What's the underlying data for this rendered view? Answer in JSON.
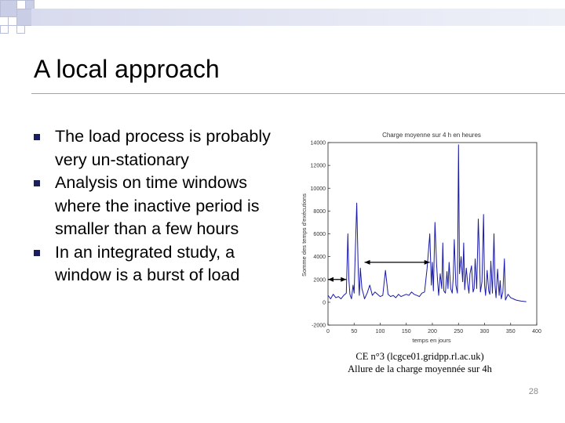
{
  "slide": {
    "title": "A local approach",
    "bullets": [
      "The load process is probably very un-stationary",
      "Analysis on time windows where the inactive period is smaller than a few hours",
      "In an integrated study, a window is a burst of load"
    ],
    "caption_line1": "CE n°3 (lcgce01.gridpp.rl.ac.uk)",
    "caption_line2": "Allure de la charge moyennée sur 4h",
    "page_number": "28"
  },
  "chart_data": {
    "type": "line",
    "title": "Charge moyenne sur 4 h en heures",
    "xlabel": "temps en jours",
    "ylabel": "Somme des temps d'exécutions",
    "x_ticks": [
      "0",
      "50",
      "100",
      "150",
      "200",
      "250",
      "300",
      "350",
      "400"
    ],
    "y_ticks": [
      "-2000",
      "0",
      "2000",
      "4000",
      "6000",
      "8000",
      "10000",
      "12000",
      "14000"
    ],
    "xlim": [
      0,
      400
    ],
    "ylim": [
      -2000,
      14000
    ],
    "grid": false,
    "series_color": "#1a1aa8",
    "annotations": [
      {
        "type": "double-arrow",
        "x_from": 0,
        "x_to": 35,
        "y": 2000
      },
      {
        "type": "double-arrow",
        "x_from": 70,
        "x_to": 195,
        "y": 3500
      }
    ],
    "series": [
      {
        "x": [
          0,
          5,
          10,
          15,
          20,
          25,
          30,
          35,
          38,
          40,
          42,
          45,
          48,
          50,
          52,
          55,
          58,
          60,
          62,
          65,
          68,
          70,
          75,
          80,
          85,
          90,
          95,
          100,
          105,
          110,
          115,
          120,
          125,
          130,
          135,
          140,
          145,
          150,
          155,
          160,
          165,
          170,
          175,
          180,
          185,
          190,
          195,
          198,
          200,
          202,
          205,
          208,
          210,
          212,
          215,
          218,
          220,
          222,
          225,
          228,
          230,
          232,
          235,
          238,
          240,
          242,
          245,
          248,
          250,
          252,
          255,
          258,
          260,
          262,
          265,
          268,
          270,
          272,
          275,
          278,
          280,
          282,
          285,
          288,
          290,
          292,
          295,
          298,
          300,
          302,
          305,
          308,
          310,
          312,
          315,
          318,
          320,
          322,
          325,
          328,
          330,
          332,
          335,
          338,
          340,
          345,
          350,
          355,
          360,
          365,
          370,
          375,
          380
        ],
        "y": [
          600,
          300,
          700,
          400,
          500,
          300,
          600,
          800,
          6000,
          2000,
          700,
          300,
          1500,
          800,
          4000,
          8700,
          2500,
          600,
          3000,
          1200,
          700,
          300,
          800,
          1500,
          600,
          900,
          700,
          500,
          600,
          2800,
          700,
          500,
          600,
          400,
          700,
          500,
          600,
          700,
          600,
          900,
          700,
          600,
          500,
          800,
          900,
          3000,
          6000,
          1500,
          3500,
          1000,
          7000,
          3400,
          1800,
          600,
          2500,
          1200,
          5200,
          1000,
          800,
          2700,
          1200,
          3500,
          1200,
          800,
          2200,
          5500,
          1500,
          800,
          13800,
          2500,
          4000,
          1800,
          5200,
          1100,
          3000,
          1500,
          800,
          2500,
          3200,
          900,
          1200,
          3800,
          1200,
          7300,
          4500,
          900,
          1800,
          7700,
          1500,
          600,
          2800,
          1000,
          700,
          3600,
          800,
          6000,
          1500,
          400,
          2900,
          600,
          1900,
          300,
          900,
          3800,
          200,
          700,
          400,
          300,
          200,
          150,
          100,
          80,
          50
        ]
      }
    ]
  }
}
